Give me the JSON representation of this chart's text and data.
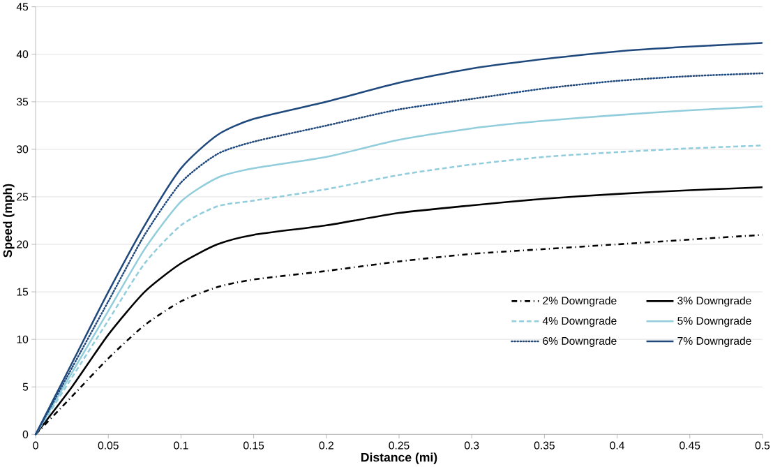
{
  "chart_data": {
    "type": "line",
    "xlabel": "Distance (mi)",
    "ylabel": "Speed (mph)",
    "x": [
      0,
      0.025,
      0.05,
      0.075,
      0.1,
      0.125,
      0.15,
      0.2,
      0.25,
      0.3,
      0.35,
      0.4,
      0.45,
      0.5
    ],
    "xlim": [
      0,
      0.5
    ],
    "xticks": [
      0,
      0.05,
      0.1,
      0.15,
      0.2,
      0.25,
      0.3,
      0.35,
      0.4,
      0.45,
      0.5
    ],
    "ylim": [
      0,
      45
    ],
    "yticks": [
      0,
      5,
      10,
      15,
      20,
      25,
      30,
      35,
      40,
      45
    ],
    "grid": "y",
    "legend": "bottom right",
    "marker": "none",
    "series": [
      {
        "name": "2% Downgrade",
        "color": "#000000",
        "line_style": "dashdot",
        "values": [
          0,
          4,
          8,
          11.5,
          14,
          15.5,
          16.3,
          17.2,
          18.2,
          19,
          19.5,
          20,
          20.5,
          21
        ]
      },
      {
        "name": "3% Downgrade",
        "color": "#000000",
        "line_style": "solid",
        "values": [
          0,
          5,
          10.5,
          15,
          18,
          20,
          21,
          22,
          23.3,
          24.1,
          24.8,
          25.3,
          25.7,
          26
        ]
      },
      {
        "name": "4% Downgrade",
        "color": "#92cddc",
        "line_style": "dashed",
        "values": [
          0,
          6,
          12,
          18,
          22,
          24,
          24.6,
          25.8,
          27.3,
          28.4,
          29.2,
          29.7,
          30.1,
          30.4
        ]
      },
      {
        "name": "5% Downgrade",
        "color": "#92cddc",
        "line_style": "solid",
        "values": [
          0,
          6.5,
          13,
          19.5,
          24.5,
          27,
          28,
          29.2,
          31,
          32.2,
          33,
          33.6,
          34.1,
          34.5
        ]
      },
      {
        "name": "6% Downgrade",
        "color": "#1f497d",
        "line_style": "dotted",
        "values": [
          0,
          7,
          14,
          21,
          26.5,
          29.5,
          30.8,
          32.5,
          34.2,
          35.3,
          36.4,
          37.2,
          37.7,
          38
        ]
      },
      {
        "name": "7% Downgrade",
        "color": "#1f497d",
        "line_style": "solid",
        "values": [
          0,
          7.5,
          15,
          22,
          28,
          31.5,
          33.2,
          35,
          37,
          38.5,
          39.5,
          40.3,
          40.8,
          41.2
        ]
      }
    ]
  }
}
